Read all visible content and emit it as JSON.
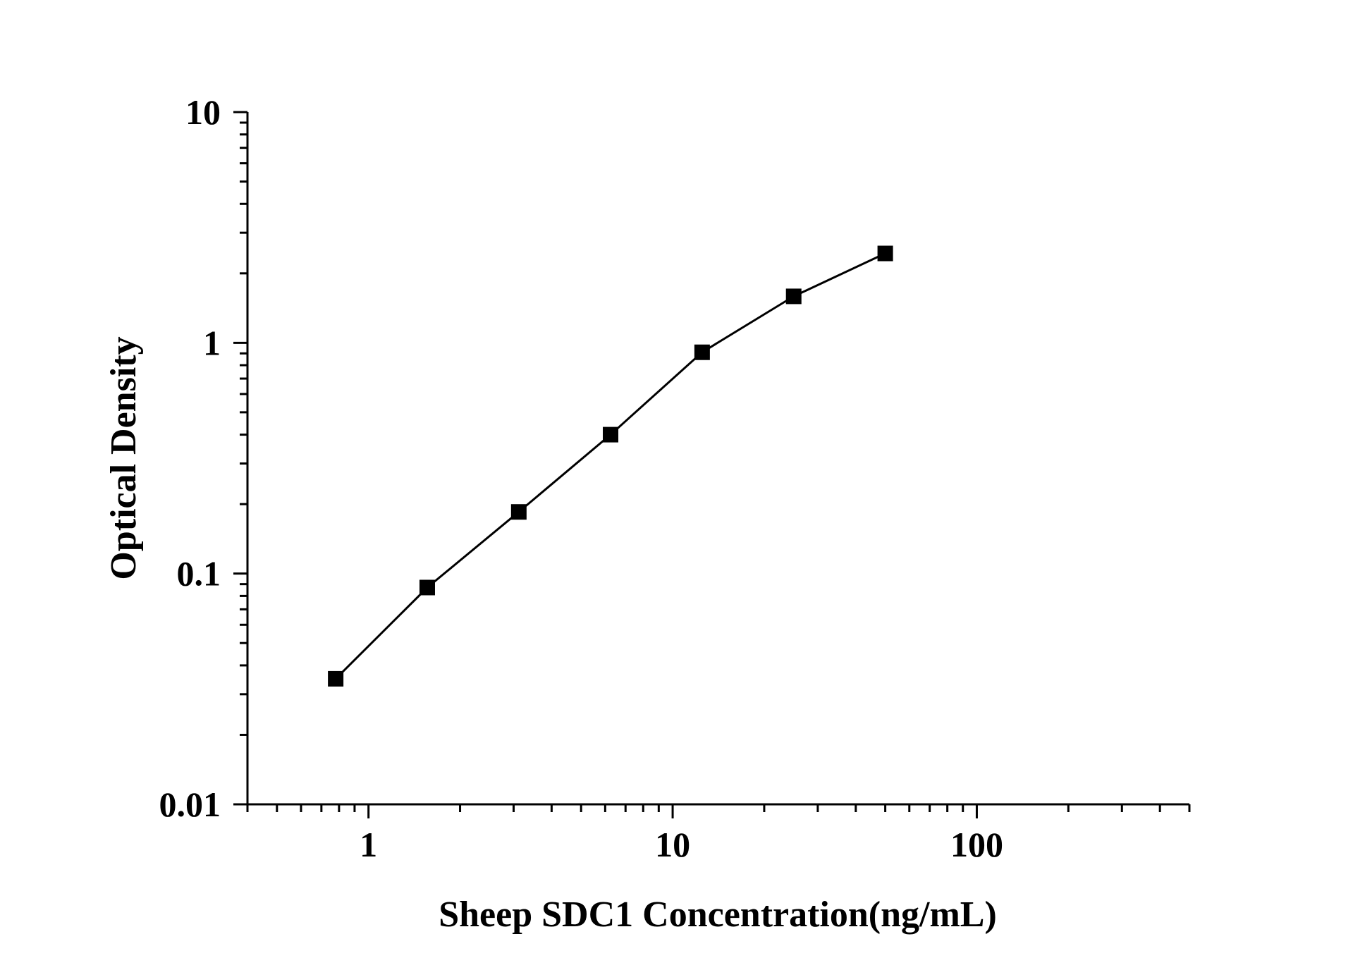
{
  "chart_data": {
    "type": "line",
    "title": "",
    "xlabel": "Sheep SDC1 Concentration(ng/mL)",
    "ylabel": "Optical Density",
    "x_scale": "log",
    "y_scale": "log",
    "xlim": [
      0.4,
      500
    ],
    "ylim": [
      0.01,
      10
    ],
    "x_ticks": [
      {
        "value": 1,
        "label": "1"
      },
      {
        "value": 10,
        "label": "10"
      },
      {
        "value": 100,
        "label": "100"
      }
    ],
    "y_ticks": [
      {
        "value": 0.01,
        "label": "0.01"
      },
      {
        "value": 0.1,
        "label": "0.1"
      },
      {
        "value": 1,
        "label": "1"
      },
      {
        "value": 10,
        "label": "10"
      }
    ],
    "grid": false,
    "legend": "none",
    "marker": "square",
    "color": "#000000",
    "series": [
      {
        "x": [
          0.78,
          1.56,
          3.12,
          6.25,
          12.5,
          25,
          50
        ],
        "y": [
          0.035,
          0.087,
          0.185,
          0.4,
          0.91,
          1.59,
          2.44
        ]
      }
    ]
  }
}
